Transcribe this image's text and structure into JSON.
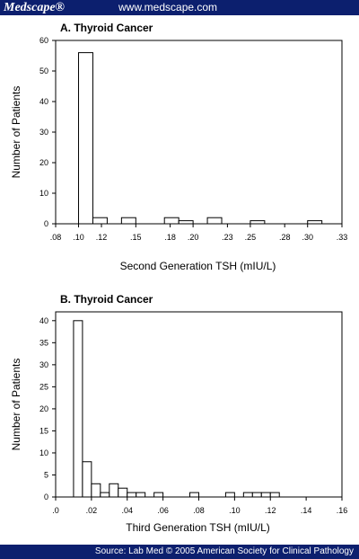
{
  "header": {
    "brand": "Medscape®",
    "site": "www.medscape.com"
  },
  "footer": {
    "source": "Source: Lab Med © 2005 American Society for Clinical Pathology"
  },
  "chart_data": [
    {
      "type": "bar",
      "title": "A. Thyroid Cancer",
      "xlabel": "Second Generation TSH (mIU/L)",
      "ylabel": "Number of Patients",
      "xlim": [
        0.08,
        0.33
      ],
      "ylim": [
        0,
        60
      ],
      "x_ticks": [
        0.08,
        0.1,
        0.12,
        0.15,
        0.18,
        0.2,
        0.23,
        0.25,
        0.28,
        0.3,
        0.33
      ],
      "x_tick_labels": [
        ".08",
        ".10",
        ".12",
        ".15",
        ".18",
        ".20",
        ".23",
        ".25",
        ".28",
        ".30",
        ".33"
      ],
      "y_ticks": [
        0,
        10,
        20,
        30,
        40,
        50,
        60
      ],
      "y_tick_labels": [
        "0",
        "10",
        "20",
        "30",
        "40",
        "50",
        "60"
      ],
      "bin_width": 0.0125,
      "bins": [
        {
          "start": 0.1,
          "value": 56
        },
        {
          "start": 0.1125,
          "value": 2
        },
        {
          "start": 0.1375,
          "value": 2
        },
        {
          "start": 0.1625,
          "value": 0
        },
        {
          "start": 0.175,
          "value": 2
        },
        {
          "start": 0.1875,
          "value": 1
        },
        {
          "start": 0.2125,
          "value": 2
        },
        {
          "start": 0.25,
          "value": 1
        },
        {
          "start": 0.3,
          "value": 1
        }
      ],
      "grid": false,
      "color": "#ffffff"
    },
    {
      "type": "bar",
      "title": "B. Thyroid Cancer",
      "xlabel": "Third Generation TSH (mIU/L)",
      "ylabel": "Number of Patients",
      "xlim": [
        0,
        0.16
      ],
      "ylim": [
        0,
        42
      ],
      "x_ticks": [
        0.0,
        0.02,
        0.04,
        0.06,
        0.08,
        0.1,
        0.12,
        0.14,
        0.16
      ],
      "x_tick_labels": [
        ".0",
        ".02",
        ".04",
        ".06",
        ".08",
        ".10",
        ".12",
        ".14",
        ".16"
      ],
      "y_ticks": [
        0,
        5,
        10,
        15,
        20,
        25,
        30,
        35,
        40
      ],
      "y_tick_labels": [
        "0",
        "5",
        "10",
        "15",
        "20",
        "25",
        "30",
        "35",
        "40"
      ],
      "bin_width": 0.005,
      "bins": [
        {
          "start": 0.01,
          "value": 40
        },
        {
          "start": 0.015,
          "value": 8
        },
        {
          "start": 0.02,
          "value": 3
        },
        {
          "start": 0.025,
          "value": 1
        },
        {
          "start": 0.03,
          "value": 3
        },
        {
          "start": 0.035,
          "value": 2
        },
        {
          "start": 0.04,
          "value": 1
        },
        {
          "start": 0.045,
          "value": 1
        },
        {
          "start": 0.055,
          "value": 1
        },
        {
          "start": 0.075,
          "value": 1
        },
        {
          "start": 0.095,
          "value": 1
        },
        {
          "start": 0.105,
          "value": 1
        },
        {
          "start": 0.11,
          "value": 1
        },
        {
          "start": 0.115,
          "value": 1
        },
        {
          "start": 0.12,
          "value": 1
        }
      ],
      "grid": false,
      "color": "#ffffff"
    }
  ]
}
